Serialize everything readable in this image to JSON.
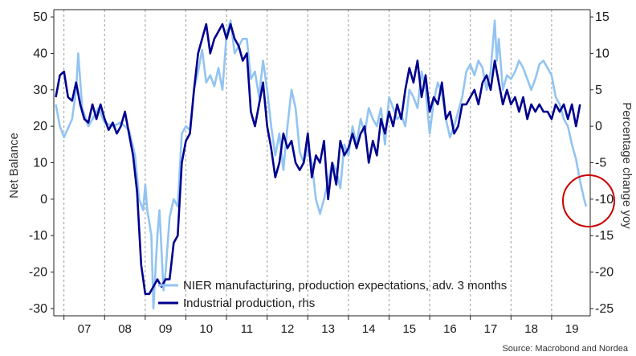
{
  "chart_data": {
    "type": "line",
    "ylabel_left": "Net Balance",
    "ylabel_right": "Percentage change yoy",
    "y_left_range": [
      -32,
      52
    ],
    "y_right_range": [
      -26,
      16
    ],
    "y_left_ticks": [
      50,
      40,
      30,
      20,
      10,
      0,
      -10,
      -20,
      -30
    ],
    "y_right_ticks": [
      15,
      10,
      5,
      0,
      -5,
      -10,
      -15,
      -20,
      -25
    ],
    "x_range": [
      2006.75,
      2019.95
    ],
    "x_tick_labels": [
      "07",
      "08",
      "09",
      "10",
      "11",
      "12",
      "13",
      "14",
      "15",
      "16",
      "17",
      "18",
      "19"
    ],
    "x_tick_positions": [
      2007.5,
      2008.5,
      2009.5,
      2010.5,
      2011.5,
      2012.5,
      2013.5,
      2014.5,
      2015.5,
      2016.5,
      2017.5,
      2018.5,
      2019.5
    ],
    "year_boundaries": [
      2007,
      2008,
      2009,
      2010,
      2011,
      2012,
      2013,
      2014,
      2015,
      2016,
      2017,
      2018,
      2019
    ],
    "legend_position": "bottom-left",
    "series": [
      {
        "name": "NIER manufacturing, production expectations, adv. 3 months",
        "axis": "left",
        "color": "#92c4f2",
        "points": [
          [
            2006.8,
            26
          ],
          [
            2006.9,
            20
          ],
          [
            2007.0,
            17
          ],
          [
            2007.2,
            22
          ],
          [
            2007.3,
            30
          ],
          [
            2007.35,
            40
          ],
          [
            2007.45,
            25
          ],
          [
            2007.6,
            20
          ],
          [
            2007.7,
            22
          ],
          [
            2007.85,
            25
          ],
          [
            2008.0,
            21
          ],
          [
            2008.2,
            20
          ],
          [
            2008.4,
            21
          ],
          [
            2008.6,
            19
          ],
          [
            2008.75,
            12
          ],
          [
            2008.85,
            0
          ],
          [
            2008.95,
            -3
          ],
          [
            2009.0,
            4
          ],
          [
            2009.05,
            -3
          ],
          [
            2009.15,
            -10
          ],
          [
            2009.2,
            -30
          ],
          [
            2009.3,
            -10
          ],
          [
            2009.35,
            -3
          ],
          [
            2009.45,
            -25
          ],
          [
            2009.5,
            -20
          ],
          [
            2009.6,
            -5
          ],
          [
            2009.7,
            0
          ],
          [
            2009.8,
            -2
          ],
          [
            2009.9,
            18
          ],
          [
            2010.0,
            20
          ],
          [
            2010.1,
            19
          ],
          [
            2010.2,
            30
          ],
          [
            2010.3,
            35
          ],
          [
            2010.4,
            41
          ],
          [
            2010.5,
            32
          ],
          [
            2010.6,
            34
          ],
          [
            2010.7,
            31
          ],
          [
            2010.8,
            36
          ],
          [
            2010.9,
            30
          ],
          [
            2011.0,
            45
          ],
          [
            2011.1,
            49
          ],
          [
            2011.2,
            40
          ],
          [
            2011.3,
            42
          ],
          [
            2011.4,
            44
          ],
          [
            2011.5,
            44
          ],
          [
            2011.6,
            33
          ],
          [
            2011.7,
            35
          ],
          [
            2011.8,
            28
          ],
          [
            2011.9,
            38
          ],
          [
            2012.0,
            30
          ],
          [
            2012.1,
            20
          ],
          [
            2012.2,
            12
          ],
          [
            2012.3,
            18
          ],
          [
            2012.4,
            8
          ],
          [
            2012.5,
            20
          ],
          [
            2012.6,
            30
          ],
          [
            2012.7,
            25
          ],
          [
            2012.8,
            13
          ],
          [
            2012.9,
            10
          ],
          [
            2013.0,
            14
          ],
          [
            2013.1,
            10
          ],
          [
            2013.2,
            0
          ],
          [
            2013.3,
            -4
          ],
          [
            2013.4,
            0
          ],
          [
            2013.5,
            5
          ],
          [
            2013.6,
            10
          ],
          [
            2013.7,
            8
          ],
          [
            2013.8,
            3
          ],
          [
            2013.9,
            15
          ],
          [
            2014.0,
            12
          ],
          [
            2014.1,
            20
          ],
          [
            2014.2,
            15
          ],
          [
            2014.3,
            22
          ],
          [
            2014.4,
            18
          ],
          [
            2014.5,
            25
          ],
          [
            2014.6,
            22
          ],
          [
            2014.7,
            20
          ],
          [
            2014.8,
            25
          ],
          [
            2014.9,
            15
          ],
          [
            2015.0,
            28
          ],
          [
            2015.1,
            25
          ],
          [
            2015.2,
            22
          ],
          [
            2015.3,
            23
          ],
          [
            2015.4,
            20
          ],
          [
            2015.5,
            30
          ],
          [
            2015.6,
            28
          ],
          [
            2015.7,
            25
          ],
          [
            2015.8,
            35
          ],
          [
            2015.9,
            30
          ],
          [
            2016.0,
            18
          ],
          [
            2016.1,
            27
          ],
          [
            2016.2,
            32
          ],
          [
            2016.3,
            29
          ],
          [
            2016.4,
            22
          ],
          [
            2016.5,
            17
          ],
          [
            2016.6,
            20
          ],
          [
            2016.7,
            24
          ],
          [
            2016.8,
            28
          ],
          [
            2016.9,
            35
          ],
          [
            2017.0,
            37
          ],
          [
            2017.1,
            34
          ],
          [
            2017.2,
            38
          ],
          [
            2017.3,
            36
          ],
          [
            2017.4,
            30
          ],
          [
            2017.5,
            35
          ],
          [
            2017.6,
            49
          ],
          [
            2017.65,
            38
          ],
          [
            2017.7,
            44
          ],
          [
            2017.8,
            30
          ],
          [
            2017.9,
            34
          ],
          [
            2018.0,
            33
          ],
          [
            2018.1,
            35
          ],
          [
            2018.2,
            38
          ],
          [
            2018.3,
            36
          ],
          [
            2018.4,
            33
          ],
          [
            2018.5,
            30
          ],
          [
            2018.6,
            33
          ],
          [
            2018.7,
            37
          ],
          [
            2018.8,
            38
          ],
          [
            2018.9,
            36
          ],
          [
            2019.0,
            34
          ],
          [
            2019.1,
            28
          ],
          [
            2019.2,
            26
          ],
          [
            2019.3,
            22
          ],
          [
            2019.4,
            20
          ],
          [
            2019.5,
            15
          ],
          [
            2019.6,
            11
          ],
          [
            2019.7,
            5
          ],
          [
            2019.8,
            0
          ],
          [
            2019.85,
            -2
          ]
        ]
      },
      {
        "name": "Industrial production, rhs",
        "axis": "right",
        "color": "#00008f",
        "points": [
          [
            2006.8,
            4
          ],
          [
            2006.9,
            7
          ],
          [
            2007.0,
            7.5
          ],
          [
            2007.1,
            4
          ],
          [
            2007.2,
            3.5
          ],
          [
            2007.3,
            6
          ],
          [
            2007.4,
            3
          ],
          [
            2007.5,
            1
          ],
          [
            2007.6,
            0.5
          ],
          [
            2007.7,
            3
          ],
          [
            2007.8,
            1
          ],
          [
            2007.9,
            3
          ],
          [
            2008.0,
            1
          ],
          [
            2008.1,
            -0.5
          ],
          [
            2008.2,
            0.5
          ],
          [
            2008.3,
            -1
          ],
          [
            2008.4,
            0
          ],
          [
            2008.5,
            2
          ],
          [
            2008.6,
            -1
          ],
          [
            2008.7,
            -4
          ],
          [
            2008.8,
            -9
          ],
          [
            2008.9,
            -19
          ],
          [
            2009.0,
            -23
          ],
          [
            2009.1,
            -23
          ],
          [
            2009.2,
            -22
          ],
          [
            2009.3,
            -21
          ],
          [
            2009.4,
            -22
          ],
          [
            2009.5,
            -21
          ],
          [
            2009.6,
            -21
          ],
          [
            2009.7,
            -16
          ],
          [
            2009.8,
            -15
          ],
          [
            2009.9,
            -5
          ],
          [
            2010.0,
            -2
          ],
          [
            2010.1,
            -1
          ],
          [
            2010.2,
            5
          ],
          [
            2010.3,
            10
          ],
          [
            2010.4,
            12
          ],
          [
            2010.5,
            14
          ],
          [
            2010.6,
            10
          ],
          [
            2010.7,
            12
          ],
          [
            2010.8,
            13
          ],
          [
            2010.9,
            14
          ],
          [
            2011.0,
            12
          ],
          [
            2011.1,
            14
          ],
          [
            2011.2,
            12
          ],
          [
            2011.3,
            11
          ],
          [
            2011.4,
            9
          ],
          [
            2011.5,
            10
          ],
          [
            2011.6,
            2
          ],
          [
            2011.7,
            0
          ],
          [
            2011.8,
            3
          ],
          [
            2011.9,
            6
          ],
          [
            2012.0,
            0
          ],
          [
            2012.1,
            -3
          ],
          [
            2012.2,
            -7
          ],
          [
            2012.3,
            -5
          ],
          [
            2012.4,
            -1
          ],
          [
            2012.5,
            -3
          ],
          [
            2012.6,
            -2
          ],
          [
            2012.7,
            -5
          ],
          [
            2012.8,
            -6
          ],
          [
            2012.9,
            -5
          ],
          [
            2013.0,
            -1
          ],
          [
            2013.1,
            -7
          ],
          [
            2013.2,
            -4
          ],
          [
            2013.3,
            -5
          ],
          [
            2013.4,
            -2
          ],
          [
            2013.5,
            -10
          ],
          [
            2013.6,
            -5
          ],
          [
            2013.7,
            -8
          ],
          [
            2013.8,
            -2
          ],
          [
            2013.9,
            -4
          ],
          [
            2014.0,
            -3
          ],
          [
            2014.1,
            -1
          ],
          [
            2014.2,
            -3
          ],
          [
            2014.3,
            -1
          ],
          [
            2014.4,
            0
          ],
          [
            2014.5,
            -5
          ],
          [
            2014.6,
            -2
          ],
          [
            2014.7,
            -4
          ],
          [
            2014.8,
            1
          ],
          [
            2014.9,
            -1
          ],
          [
            2015.0,
            2
          ],
          [
            2015.1,
            0
          ],
          [
            2015.2,
            3
          ],
          [
            2015.3,
            1
          ],
          [
            2015.4,
            5
          ],
          [
            2015.5,
            8
          ],
          [
            2015.6,
            6
          ],
          [
            2015.7,
            9
          ],
          [
            2015.8,
            4
          ],
          [
            2015.9,
            7
          ],
          [
            2016.0,
            2
          ],
          [
            2016.1,
            4
          ],
          [
            2016.2,
            3
          ],
          [
            2016.3,
            6
          ],
          [
            2016.4,
            1
          ],
          [
            2016.5,
            2
          ],
          [
            2016.6,
            -1
          ],
          [
            2016.7,
            0
          ],
          [
            2016.8,
            3
          ],
          [
            2016.9,
            3
          ],
          [
            2017.0,
            4
          ],
          [
            2017.1,
            5
          ],
          [
            2017.2,
            3
          ],
          [
            2017.3,
            6
          ],
          [
            2017.4,
            7
          ],
          [
            2017.5,
            5
          ],
          [
            2017.6,
            9
          ],
          [
            2017.7,
            6
          ],
          [
            2017.8,
            3
          ],
          [
            2017.9,
            5
          ],
          [
            2018.0,
            3
          ],
          [
            2018.1,
            4
          ],
          [
            2018.2,
            2
          ],
          [
            2018.3,
            4
          ],
          [
            2018.4,
            1
          ],
          [
            2018.5,
            3
          ],
          [
            2018.6,
            2
          ],
          [
            2018.7,
            3
          ],
          [
            2018.8,
            2
          ],
          [
            2018.9,
            2
          ],
          [
            2019.0,
            1
          ],
          [
            2019.1,
            3
          ],
          [
            2019.2,
            2
          ],
          [
            2019.3,
            3
          ],
          [
            2019.4,
            1
          ],
          [
            2019.5,
            3
          ],
          [
            2019.6,
            0
          ],
          [
            2019.7,
            3
          ]
        ]
      }
    ]
  },
  "source": "Source: Macrobond and Nordea",
  "highlight_circle_color": "#cc0000"
}
